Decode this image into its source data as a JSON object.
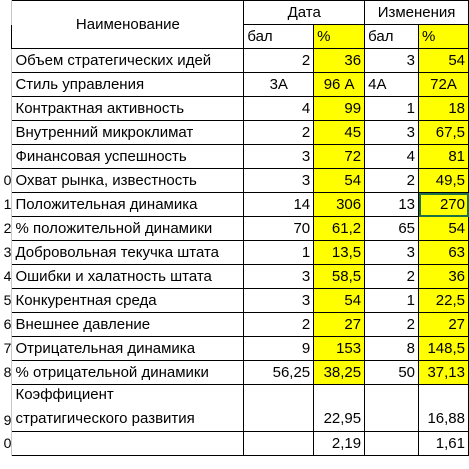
{
  "header": {
    "name_label": "Наименование",
    "group1_label": "Дата",
    "group2_label": "Изменения",
    "sub_bal": "бал",
    "sub_pct": "%"
  },
  "rows": [
    {
      "rn": "",
      "name": "Объем стратегических идей",
      "b1": "2",
      "p1": "36",
      "b2": "3",
      "p2": "54"
    },
    {
      "rn": "",
      "name": "Стиль управления",
      "b1": "3А",
      "p1": "96 А",
      "b2": "4А",
      "p2": "72А"
    },
    {
      "rn": "",
      "name": "Контрактная активность",
      "b1": "4",
      "p1": "99",
      "b2": "1",
      "p2": "18"
    },
    {
      "rn": "",
      "name": "Внутренний микроклимат",
      "b1": "2",
      "p1": "45",
      "b2": "3",
      "p2": "67,5"
    },
    {
      "rn": "",
      "name": "Финансовая успешность",
      "b1": "3",
      "p1": "72",
      "b2": "4",
      "p2": "81"
    },
    {
      "rn": "0",
      "name": "Охват рынка, известность",
      "b1": "3",
      "p1": "54",
      "b2": "2",
      "p2": "49,5"
    },
    {
      "rn": "1",
      "name": "Положительная динамика",
      "b1": "14",
      "p1": "306",
      "b2": "13",
      "p2": "270"
    },
    {
      "rn": "2",
      "name": "% положительной динамики",
      "b1": "70",
      "p1": "61,2",
      "b2": "65",
      "p2": "54"
    },
    {
      "rn": "3",
      "name": "Добровольная текучка штата",
      "b1": "1",
      "p1": "13,5",
      "b2": "3",
      "p2": "63"
    },
    {
      "rn": "4",
      "name": "Ошибки и халатность штата",
      "b1": "3",
      "p1": "58,5",
      "b2": "2",
      "p2": "36"
    },
    {
      "rn": "5",
      "name": "Конкурентная среда",
      "b1": "3",
      "p1": "54",
      "b2": "1",
      "p2": "22,5"
    },
    {
      "rn": "6",
      "name": "Внешнее давление",
      "b1": "2",
      "p1": "27",
      "b2": "2",
      "p2": "27"
    },
    {
      "rn": "7",
      "name": "Отрицательная динамика",
      "b1": "9",
      "p1": "153",
      "b2": "8",
      "p2": "148,5"
    },
    {
      "rn": "8",
      "name": "% отрицательной динамики",
      "b1": "56,25",
      "p1": "38,25",
      "b2": "50",
      "p2": "37,13"
    }
  ],
  "coef": {
    "rn": "9",
    "line1": "Коэффициент",
    "line2": "стратигического развития",
    "p1": "22,95",
    "p2": "16,88"
  },
  "last": {
    "rn": "0",
    "p1": "2,19",
    "p2": "1,61"
  },
  "highlight_color": "#ffff00",
  "selection_color": "#1e7145"
}
